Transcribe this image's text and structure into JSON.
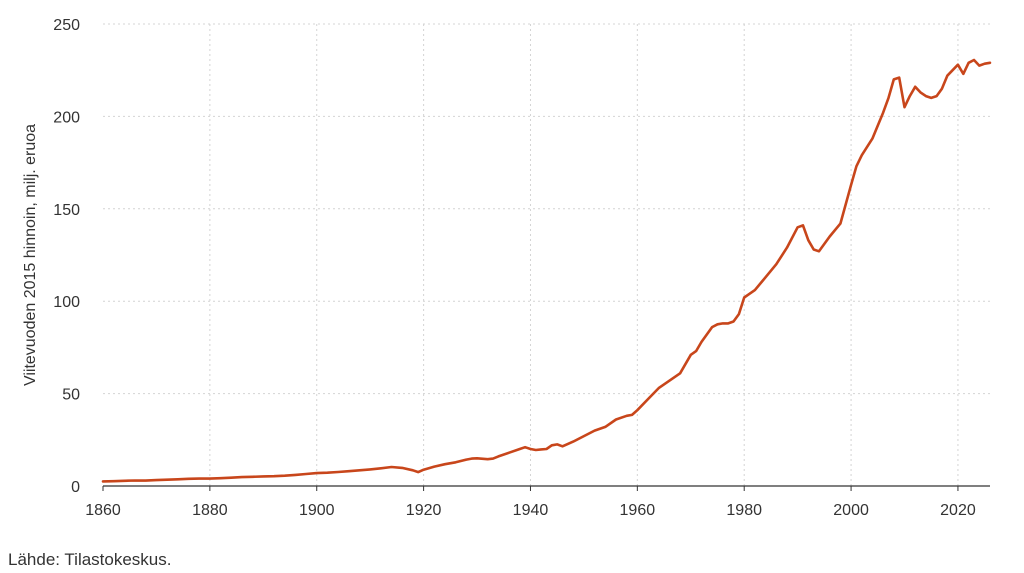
{
  "chart_data": {
    "type": "line",
    "title": "",
    "xlabel": "",
    "ylabel": "Viitevuoden 2015 hinnoin, milj. eruoa",
    "xlim": [
      1860,
      2026
    ],
    "ylim": [
      0,
      250
    ],
    "x_ticks": [
      "1860",
      "1880",
      "1900",
      "1920",
      "1940",
      "1960",
      "1980",
      "2000",
      "2020"
    ],
    "y_ticks": [
      "0",
      "50",
      "100",
      "150",
      "200",
      "250"
    ],
    "grid": true,
    "legend": "none",
    "series": [
      {
        "color": "#c8461b",
        "x": [
          1860,
          1862,
          1864,
          1866,
          1868,
          1870,
          1872,
          1874,
          1876,
          1878,
          1880,
          1882,
          1884,
          1886,
          1888,
          1890,
          1892,
          1894,
          1896,
          1898,
          1900,
          1902,
          1904,
          1906,
          1908,
          1910,
          1912,
          1914,
          1916,
          1918,
          1919,
          1920,
          1922,
          1924,
          1926,
          1928,
          1929,
          1930,
          1932,
          1933,
          1934,
          1936,
          1938,
          1939,
          1940,
          1941,
          1942,
          1943,
          1944,
          1945,
          1946,
          1947,
          1948,
          1950,
          1952,
          1954,
          1956,
          1958,
          1959,
          1960,
          1962,
          1964,
          1966,
          1968,
          1970,
          1971,
          1972,
          1974,
          1975,
          1976,
          1977,
          1978,
          1979,
          1980,
          1981,
          1982,
          1984,
          1986,
          1988,
          1990,
          1991,
          1992,
          1993,
          1994,
          1996,
          1998,
          2000,
          2001,
          2002,
          2004,
          2006,
          2007,
          2008,
          2009,
          2010,
          2011,
          2012,
          2013,
          2014,
          2015,
          2016,
          2017,
          2018,
          2019,
          2020,
          2021,
          2022,
          2023,
          2024,
          2025,
          2026
        ],
        "y": [
          2.5,
          2.6,
          2.8,
          3.0,
          2.9,
          3.2,
          3.4,
          3.6,
          3.9,
          4.0,
          4.0,
          4.2,
          4.5,
          4.8,
          5.0,
          5.2,
          5.3,
          5.6,
          6.0,
          6.5,
          7.0,
          7.2,
          7.6,
          8.0,
          8.5,
          9.0,
          9.6,
          10.3,
          9.8,
          8.5,
          7.5,
          8.8,
          10.5,
          11.8,
          12.8,
          14.3,
          14.8,
          15.0,
          14.5,
          14.8,
          16.0,
          18.0,
          20.0,
          21.0,
          20.0,
          19.5,
          19.8,
          20.0,
          22.0,
          22.5,
          21.5,
          22.8,
          24.0,
          27.0,
          30.0,
          32.0,
          36.0,
          38.0,
          38.5,
          41.0,
          47.0,
          53.0,
          57.0,
          61.0,
          71.0,
          73.0,
          78.0,
          86.0,
          87.5,
          88.0,
          88.0,
          89.0,
          93.0,
          102.0,
          104.0,
          106.0,
          113.0,
          120.0,
          129.0,
          140.0,
          141.0,
          133.0,
          128.0,
          127.0,
          135.0,
          142.0,
          163.0,
          173.0,
          179.0,
          188.0,
          202.0,
          210.0,
          220.0,
          221.0,
          205.0,
          211.0,
          216.0,
          213.0,
          211.0,
          210.0,
          211.0,
          215.0,
          222.0,
          225.0,
          228.0,
          223.0,
          229.0,
          230.5,
          227.5,
          228.5,
          229.0
        ]
      }
    ]
  },
  "source_note": "Lähde: Tilastokeskus."
}
